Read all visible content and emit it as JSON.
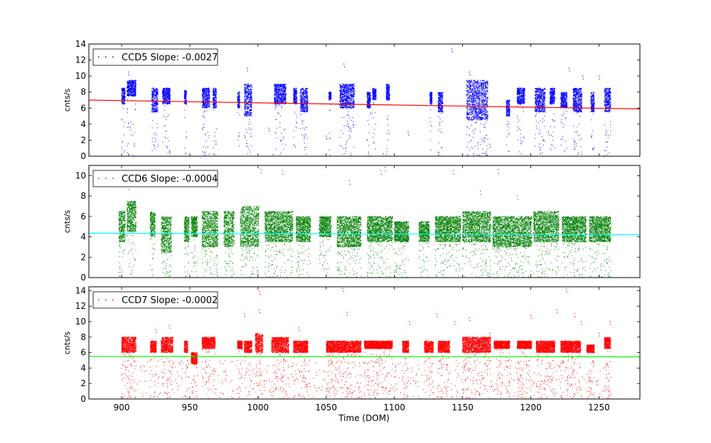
{
  "chart_data": [
    {
      "type": "scatter",
      "legend": "CCD5 Slope: -0.0027",
      "legend_position": "top-left",
      "ylabel": "cnts/s",
      "xlim": [
        876,
        1280
      ],
      "ylim": [
        0,
        14
      ],
      "yticks": [
        0,
        2,
        4,
        6,
        8,
        10,
        12,
        14
      ],
      "point_color": "#0000ff",
      "fit": {
        "slope": -0.0027,
        "x": [
          876,
          1280
        ],
        "y": [
          7.0,
          5.9
        ],
        "color": "#ff0000"
      },
      "bands": [
        {
          "x": [
            900,
            902
          ],
          "y": [
            6.5,
            8.5
          ]
        },
        {
          "x": [
            904,
            910
          ],
          "y": [
            7.5,
            9.5
          ]
        },
        {
          "x": [
            922,
            926
          ],
          "y": [
            5.5,
            8.5
          ]
        },
        {
          "x": [
            930,
            935
          ],
          "y": [
            6.5,
            8.5
          ]
        },
        {
          "x": [
            946,
            947
          ],
          "y": [
            6.5,
            8.2
          ]
        },
        {
          "x": [
            959,
            964
          ],
          "y": [
            6.0,
            8.5
          ]
        },
        {
          "x": [
            967,
            969
          ],
          "y": [
            6.0,
            8.5
          ]
        },
        {
          "x": [
            985,
            986
          ],
          "y": [
            6.0,
            8.0
          ]
        },
        {
          "x": [
            990,
            995
          ],
          "y": [
            5.0,
            9.0
          ]
        },
        {
          "x": [
            1012,
            1020
          ],
          "y": [
            6.5,
            9.0
          ]
        },
        {
          "x": [
            1026,
            1028
          ],
          "y": [
            6.5,
            8.5
          ]
        },
        {
          "x": [
            1031,
            1036
          ],
          "y": [
            5.5,
            8.5
          ]
        },
        {
          "x": [
            1052,
            1053
          ],
          "y": [
            7.0,
            8.0
          ]
        },
        {
          "x": [
            1060,
            1070
          ],
          "y": [
            6.0,
            9.0
          ]
        },
        {
          "x": [
            1080,
            1082
          ],
          "y": [
            6.0,
            8.0
          ]
        },
        {
          "x": [
            1084,
            1086
          ],
          "y": [
            7.0,
            8.5
          ]
        },
        {
          "x": [
            1094,
            1096
          ],
          "y": [
            7.0,
            9.0
          ]
        },
        {
          "x": [
            1126,
            1127
          ],
          "y": [
            6.5,
            8.0
          ]
        },
        {
          "x": [
            1132,
            1135
          ],
          "y": [
            5.5,
            8.0
          ]
        },
        {
          "x": [
            1153,
            1168
          ],
          "y": [
            4.5,
            9.5
          ]
        },
        {
          "x": [
            1182,
            1184
          ],
          "y": [
            5.0,
            7.0
          ]
        },
        {
          "x": [
            1190,
            1195
          ],
          "y": [
            6.5,
            8.5
          ]
        },
        {
          "x": [
            1203,
            1210
          ],
          "y": [
            5.5,
            8.5
          ]
        },
        {
          "x": [
            1214,
            1217
          ],
          "y": [
            6.5,
            8.5
          ]
        },
        {
          "x": [
            1222,
            1226
          ],
          "y": [
            6.0,
            8.0
          ]
        },
        {
          "x": [
            1231,
            1237
          ],
          "y": [
            5.5,
            8.5
          ]
        },
        {
          "x": [
            1244,
            1246
          ],
          "y": [
            5.5,
            8.0
          ]
        },
        {
          "x": [
            1254,
            1258
          ],
          "y": [
            5.5,
            8.5
          ]
        }
      ],
      "outliers": [
        {
          "x": 905,
          "y": 10.5
        },
        {
          "x": 992,
          "y": 11.0
        },
        {
          "x": 1063,
          "y": 11.5
        },
        {
          "x": 1142,
          "y": 13.4
        },
        {
          "x": 1155,
          "y": 10.5
        },
        {
          "x": 1228,
          "y": 11.0
        },
        {
          "x": 1238,
          "y": 10.0
        },
        {
          "x": 1250,
          "y": 10.0
        },
        {
          "x": 961,
          "y": 0.5
        },
        {
          "x": 1011,
          "y": 0.2
        },
        {
          "x": 1092,
          "y": 0.3
        },
        {
          "x": 1132,
          "y": 0.5
        },
        {
          "x": 1158,
          "y": 0.3
        },
        {
          "x": 1207,
          "y": 0.3
        },
        {
          "x": 1213,
          "y": 3.0
        },
        {
          "x": 1110,
          "y": 3.0
        },
        {
          "x": 1008,
          "y": 3.5
        },
        {
          "x": 1066,
          "y": 4.0
        },
        {
          "x": 1050,
          "y": 2.5
        },
        {
          "x": 1170,
          "y": 1.5
        }
      ]
    },
    {
      "type": "scatter",
      "legend": "CCD6 Slope: -0.0004",
      "legend_position": "top-left",
      "ylabel": "cnts/s",
      "xlim": [
        876,
        1280
      ],
      "ylim": [
        0,
        11
      ],
      "yticks": [
        0,
        2,
        4,
        6,
        8,
        10
      ],
      "point_color": "#008000",
      "fit": {
        "slope": -0.0004,
        "x": [
          876,
          1280
        ],
        "y": [
          4.35,
          4.2
        ],
        "color": "#00ffff"
      },
      "bands": [
        {
          "x": [
            898,
            902
          ],
          "y": [
            3.5,
            6.5
          ]
        },
        {
          "x": [
            904,
            910
          ],
          "y": [
            4.5,
            7.5
          ]
        },
        {
          "x": [
            921,
            924
          ],
          "y": [
            4.0,
            6.5
          ]
        },
        {
          "x": [
            929,
            936
          ],
          "y": [
            2.5,
            6.0
          ]
        },
        {
          "x": [
            946,
            949
          ],
          "y": [
            3.5,
            6.0
          ]
        },
        {
          "x": [
            951,
            955
          ],
          "y": [
            4.0,
            6.0
          ]
        },
        {
          "x": [
            959,
            970
          ],
          "y": [
            3.0,
            6.5
          ]
        },
        {
          "x": [
            975,
            982
          ],
          "y": [
            3.0,
            6.5
          ]
        },
        {
          "x": [
            987,
            1000
          ],
          "y": [
            3.0,
            7.0
          ]
        },
        {
          "x": [
            1005,
            1025
          ],
          "y": [
            3.5,
            6.5
          ]
        },
        {
          "x": [
            1028,
            1038
          ],
          "y": [
            3.5,
            6.0
          ]
        },
        {
          "x": [
            1045,
            1053
          ],
          "y": [
            4.0,
            6.0
          ]
        },
        {
          "x": [
            1058,
            1075
          ],
          "y": [
            3.0,
            6.0
          ]
        },
        {
          "x": [
            1080,
            1098
          ],
          "y": [
            3.5,
            6.0
          ]
        },
        {
          "x": [
            1100,
            1110
          ],
          "y": [
            3.5,
            5.5
          ]
        },
        {
          "x": [
            1118,
            1125
          ],
          "y": [
            3.5,
            5.5
          ]
        },
        {
          "x": [
            1130,
            1148
          ],
          "y": [
            3.5,
            6.0
          ]
        },
        {
          "x": [
            1150,
            1170
          ],
          "y": [
            3.5,
            6.5
          ]
        },
        {
          "x": [
            1172,
            1200
          ],
          "y": [
            3.0,
            6.0
          ]
        },
        {
          "x": [
            1202,
            1220
          ],
          "y": [
            3.5,
            6.5
          ]
        },
        {
          "x": [
            1223,
            1240
          ],
          "y": [
            3.5,
            6.0
          ]
        },
        {
          "x": [
            1243,
            1258
          ],
          "y": [
            3.5,
            6.0
          ]
        }
      ],
      "outliers": [
        {
          "x": 1002,
          "y": 10.6
        },
        {
          "x": 1018,
          "y": 10.5
        },
        {
          "x": 1090,
          "y": 10.5
        },
        {
          "x": 1143,
          "y": 10.5
        },
        {
          "x": 1176,
          "y": 10.6
        },
        {
          "x": 1093,
          "y": 10.8
        },
        {
          "x": 905,
          "y": 9.0
        },
        {
          "x": 1067,
          "y": 9.5
        },
        {
          "x": 1163,
          "y": 8.5
        },
        {
          "x": 1190,
          "y": 8.0
        },
        {
          "x": 898,
          "y": 0.5
        },
        {
          "x": 935,
          "y": 0.5
        },
        {
          "x": 970,
          "y": 0.5
        },
        {
          "x": 1000,
          "y": 0.3
        },
        {
          "x": 1060,
          "y": 0.3
        },
        {
          "x": 1080,
          "y": 0.5
        },
        {
          "x": 1100,
          "y": 0.5
        },
        {
          "x": 1135,
          "y": 0.3
        },
        {
          "x": 1200,
          "y": 0.3
        },
        {
          "x": 1236,
          "y": 0.3
        }
      ]
    },
    {
      "type": "scatter",
      "legend": "CCD7 Slope: -0.0002",
      "legend_position": "top-left",
      "xlabel": "Time (DOM)",
      "ylabel": "cnts/s",
      "xlim": [
        876,
        1280
      ],
      "ylim": [
        0,
        14.5
      ],
      "yticks": [
        0,
        2,
        4,
        6,
        8,
        10,
        12,
        14
      ],
      "xticks": [
        900,
        950,
        1000,
        1050,
        1100,
        1150,
        1200,
        1250
      ],
      "point_color": "#ff0000",
      "fit": {
        "slope": -0.0002,
        "x": [
          876,
          1280
        ],
        "y": [
          5.5,
          5.45
        ],
        "color": "#00ff00"
      },
      "bands": [
        {
          "x": [
            900,
            910
          ],
          "y": [
            6.0,
            8.0
          ]
        },
        {
          "x": [
            921,
            925
          ],
          "y": [
            6.0,
            7.5
          ]
        },
        {
          "x": [
            929,
            937
          ],
          "y": [
            6.0,
            8.0
          ]
        },
        {
          "x": [
            946,
            948
          ],
          "y": [
            6.0,
            7.5
          ]
        },
        {
          "x": [
            951,
            955
          ],
          "y": [
            4.5,
            6.0
          ]
        },
        {
          "x": [
            959,
            968
          ],
          "y": [
            6.5,
            8.0
          ]
        },
        {
          "x": [
            985,
            988
          ],
          "y": [
            6.5,
            7.5
          ]
        },
        {
          "x": [
            990,
            995
          ],
          "y": [
            6.0,
            7.5
          ]
        },
        {
          "x": [
            998,
            1003
          ],
          "y": [
            6.0,
            8.5
          ]
        },
        {
          "x": [
            1010,
            1022
          ],
          "y": [
            6.0,
            8.0
          ]
        },
        {
          "x": [
            1026,
            1036
          ],
          "y": [
            6.0,
            7.5
          ]
        },
        {
          "x": [
            1050,
            1075
          ],
          "y": [
            6.0,
            7.5
          ]
        },
        {
          "x": [
            1078,
            1098
          ],
          "y": [
            6.5,
            7.5
          ]
        },
        {
          "x": [
            1106,
            1110
          ],
          "y": [
            6.0,
            7.5
          ]
        },
        {
          "x": [
            1122,
            1128
          ],
          "y": [
            6.0,
            7.5
          ]
        },
        {
          "x": [
            1132,
            1140
          ],
          "y": [
            6.0,
            7.5
          ]
        },
        {
          "x": [
            1150,
            1170
          ],
          "y": [
            6.0,
            8.0
          ]
        },
        {
          "x": [
            1173,
            1184
          ],
          "y": [
            6.5,
            7.5
          ]
        },
        {
          "x": [
            1190,
            1200
          ],
          "y": [
            6.5,
            7.5
          ]
        },
        {
          "x": [
            1204,
            1217
          ],
          "y": [
            6.0,
            7.5
          ]
        },
        {
          "x": [
            1222,
            1236
          ],
          "y": [
            6.0,
            7.5
          ]
        },
        {
          "x": [
            1241,
            1246
          ],
          "y": [
            6.0,
            7.0
          ]
        },
        {
          "x": [
            1254,
            1258
          ],
          "y": [
            6.5,
            8.0
          ]
        }
      ],
      "outliers": [
        {
          "x": 1001,
          "y": 13.9
        },
        {
          "x": 1062,
          "y": 14.3
        },
        {
          "x": 1226,
          "y": 14.2
        },
        {
          "x": 1219,
          "y": 11.5
        },
        {
          "x": 1232,
          "y": 11.0
        },
        {
          "x": 1065,
          "y": 11.2
        },
        {
          "x": 990,
          "y": 11.0
        },
        {
          "x": 1001,
          "y": 11.5
        },
        {
          "x": 1131,
          "y": 11.0
        },
        {
          "x": 1155,
          "y": 10.5
        },
        {
          "x": 1200,
          "y": 10.8
        },
        {
          "x": 1237,
          "y": 10.0
        },
        {
          "x": 1258,
          "y": 10.0
        },
        {
          "x": 1144,
          "y": 10.0
        },
        {
          "x": 1111,
          "y": 10.0
        },
        {
          "x": 935,
          "y": 9.5
        },
        {
          "x": 1030,
          "y": 9.2
        },
        {
          "x": 1170,
          "y": 8.5
        },
        {
          "x": 925,
          "y": 9.0
        },
        {
          "x": 1250,
          "y": 8.5
        }
      ],
      "low_scatter": {
        "x": [
          900,
          1260
        ],
        "y": [
          0,
          5
        ]
      }
    }
  ]
}
